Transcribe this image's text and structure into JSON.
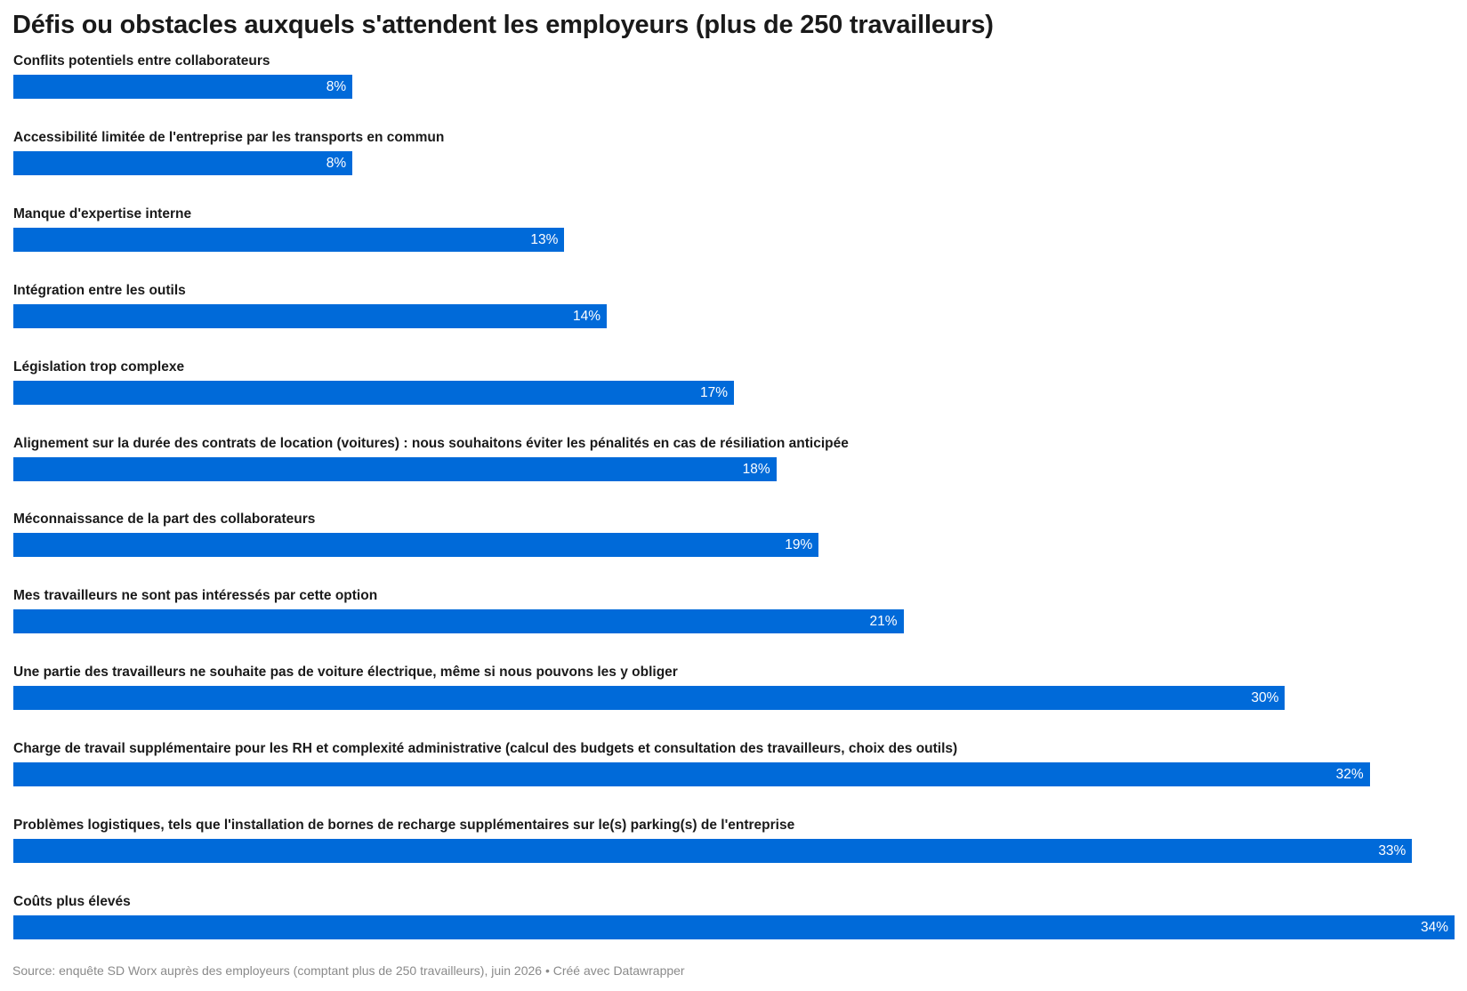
{
  "chart_data": {
    "type": "bar",
    "orientation": "horizontal",
    "title": "Défis ou obstacles auxquels s'attendent les employeurs (plus de 250 travailleurs)",
    "categories": [
      "Conflits potentiels entre collaborateurs",
      "Accessibilité limitée de l'entreprise par les transports en commun",
      "Manque d'expertise interne",
      "Intégration entre les outils",
      "Législation trop complexe",
      "Alignement sur la durée des contrats de location (voitures) : nous souhaitons éviter les pénalités en cas de résiliation anticipée",
      "Méconnaissance de la part des collaborateurs",
      "Mes travailleurs ne sont pas intéressés par cette option",
      "Une partie des travailleurs ne souhaite pas de voiture électrique, même si nous pouvons les y obliger",
      "Charge de travail supplémentaire pour les RH et complexité administrative (calcul des budgets et consultation des travailleurs, choix des outils)",
      "Problèmes logistiques, tels que l'installation de bornes de recharge supplémentaires sur le(s) parking(s) de l'entreprise",
      "Coûts plus élevés"
    ],
    "values": [
      8,
      8,
      13,
      14,
      17,
      18,
      19,
      21,
      30,
      32,
      33,
      34
    ],
    "value_labels": [
      "8%",
      "8%",
      "13%",
      "14%",
      "17%",
      "18%",
      "19%",
      "21%",
      "30%",
      "32%",
      "33%",
      "34%"
    ],
    "unit": "%",
    "xlim": [
      0,
      34
    ],
    "bar_color": "#006ad9",
    "grid": false,
    "legend": "none"
  },
  "source": "Source: enquête SD Worx auprès des employeurs (comptant plus de 250 travailleurs), juin 2026 • Créé avec Datawrapper"
}
